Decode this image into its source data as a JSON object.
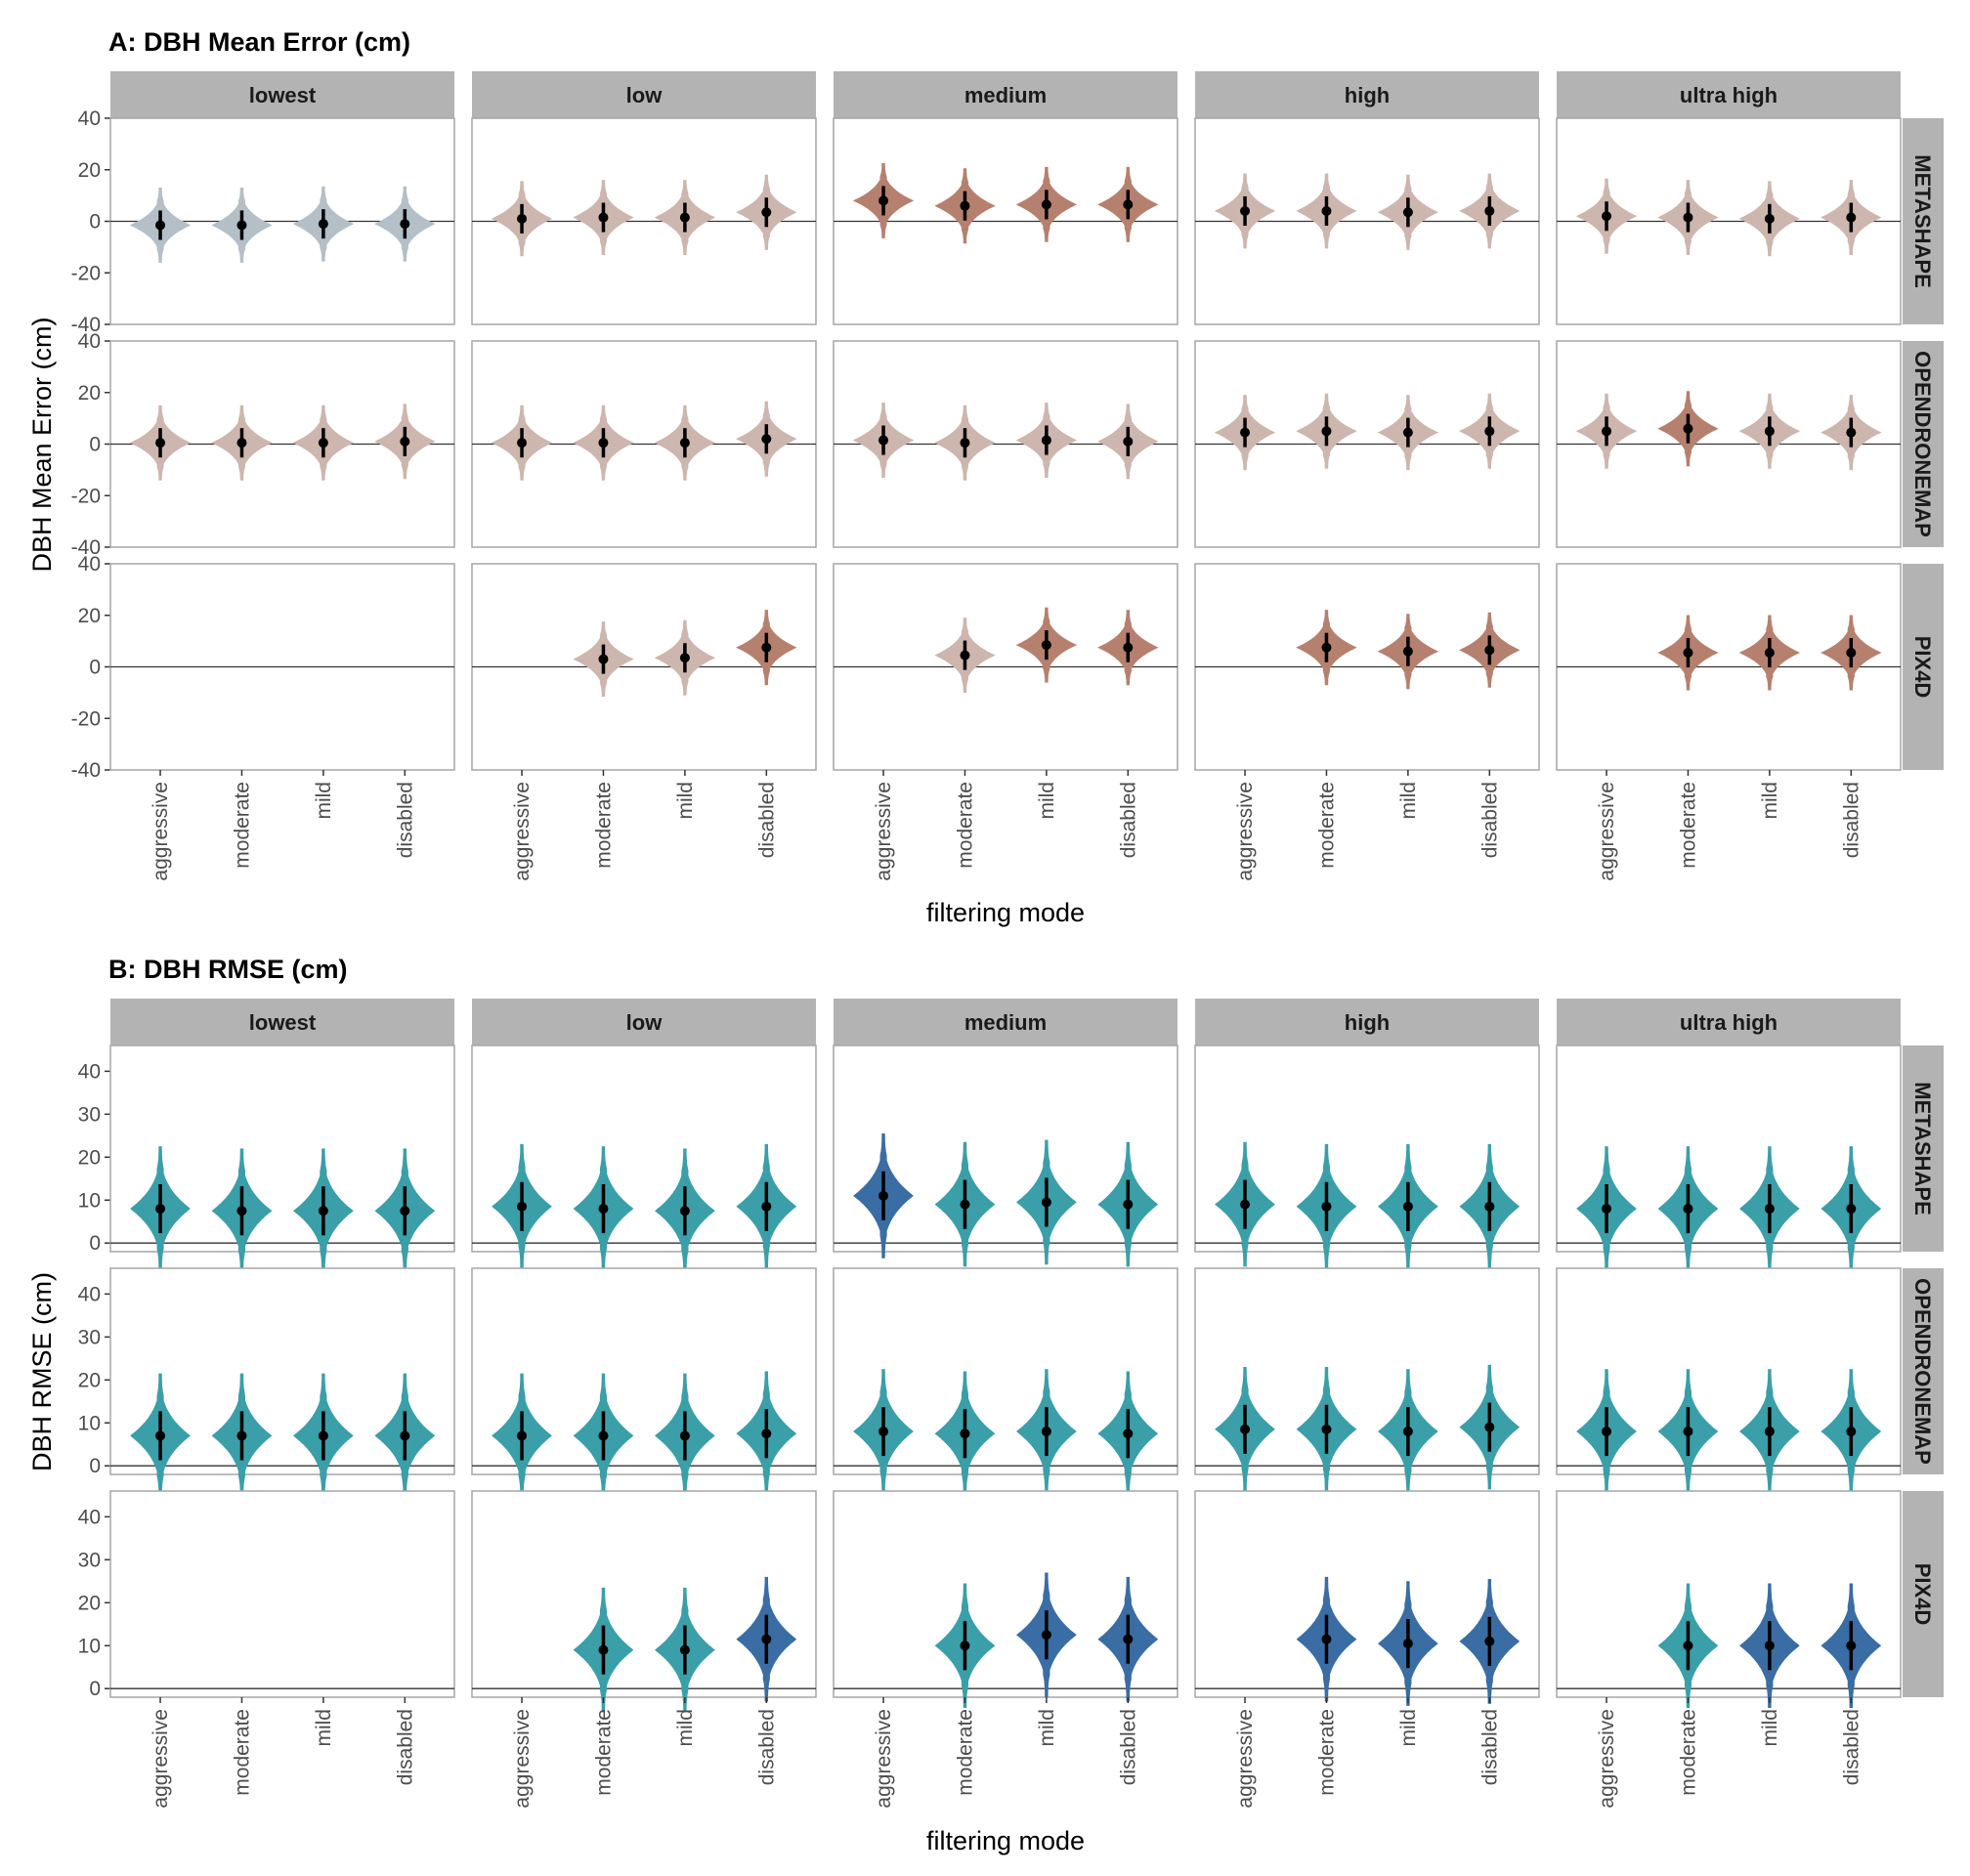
{
  "panels_order": [
    "A",
    "B"
  ],
  "chart_data": [
    {
      "id": "A",
      "type": "violin",
      "title": "A: DBH Mean Error (cm)",
      "xlabel": "filtering mode",
      "ylabel": "DBH Mean Error (cm)",
      "ylim": [
        -40,
        40
      ],
      "yticks": [
        -40,
        -20,
        0,
        20,
        40
      ],
      "col_facets": [
        "lowest",
        "low",
        "medium",
        "high",
        "ultra high"
      ],
      "row_facets": [
        "METASHAPE",
        "OPENDRONEMAP",
        "PIX4D"
      ],
      "categories": [
        "aggressive",
        "moderate",
        "mild",
        "disabled"
      ],
      "reference_line": 0,
      "grid": false,
      "cells": [
        {
          "row": "METASHAPE",
          "col": "lowest",
          "mean": [
            -1.5,
            -1.5,
            -1,
            -1
          ],
          "halfwidth": [
            6,
            6,
            6,
            6
          ],
          "color": [
            "#b4bfc7",
            "#b4bfc7",
            "#b4bfc7",
            "#b4bfc7"
          ]
        },
        {
          "row": "METASHAPE",
          "col": "low",
          "mean": [
            1,
            1.5,
            1.5,
            3.5
          ],
          "halfwidth": [
            6,
            6,
            6,
            6
          ],
          "color": [
            "#cdb6ae",
            "#cdb6ae",
            "#cdb6ae",
            "#cdb6ae"
          ]
        },
        {
          "row": "METASHAPE",
          "col": "medium",
          "mean": [
            8,
            6,
            6.5,
            6.5
          ],
          "halfwidth": [
            6,
            6,
            6,
            6
          ],
          "color": [
            "#b6806f",
            "#b6806f",
            "#b6806f",
            "#b6806f"
          ]
        },
        {
          "row": "METASHAPE",
          "col": "high",
          "mean": [
            4,
            4,
            3.5,
            4
          ],
          "halfwidth": [
            6,
            6,
            6,
            6
          ],
          "color": [
            "#cdb6ae",
            "#cdb6ae",
            "#cdb6ae",
            "#cdb6ae"
          ]
        },
        {
          "row": "METASHAPE",
          "col": "ultra high",
          "mean": [
            2,
            1.5,
            1,
            1.5
          ],
          "halfwidth": [
            6,
            6,
            6,
            6
          ],
          "color": [
            "#cdb6ae",
            "#cdb6ae",
            "#cdb6ae",
            "#cdb6ae"
          ]
        },
        {
          "row": "OPENDRONEMAP",
          "col": "lowest",
          "mean": [
            0.5,
            0.5,
            0.5,
            1
          ],
          "halfwidth": [
            6,
            6,
            6,
            6
          ],
          "color": [
            "#cdb6ae",
            "#cdb6ae",
            "#cdb6ae",
            "#cdb6ae"
          ]
        },
        {
          "row": "OPENDRONEMAP",
          "col": "low",
          "mean": [
            0.5,
            0.5,
            0.5,
            2
          ],
          "halfwidth": [
            6,
            6,
            6,
            6
          ],
          "color": [
            "#cdb6ae",
            "#cdb6ae",
            "#cdb6ae",
            "#cdb6ae"
          ]
        },
        {
          "row": "OPENDRONEMAP",
          "col": "medium",
          "mean": [
            1.5,
            0.5,
            1.5,
            1
          ],
          "halfwidth": [
            6,
            6,
            6,
            6
          ],
          "color": [
            "#cdb6ae",
            "#cdb6ae",
            "#cdb6ae",
            "#cdb6ae"
          ]
        },
        {
          "row": "OPENDRONEMAP",
          "col": "high",
          "mean": [
            4.5,
            5,
            4.5,
            5
          ],
          "halfwidth": [
            6,
            6,
            6,
            6
          ],
          "color": [
            "#cdb6ae",
            "#cdb6ae",
            "#cdb6ae",
            "#cdb6ae"
          ]
        },
        {
          "row": "OPENDRONEMAP",
          "col": "ultra high",
          "mean": [
            5,
            6,
            5,
            4.5
          ],
          "halfwidth": [
            6,
            6,
            6,
            6
          ],
          "color": [
            "#cdb6ae",
            "#b6806f",
            "#cdb6ae",
            "#cdb6ae"
          ]
        },
        {
          "row": "PIX4D",
          "col": "lowest",
          "mean": [
            null,
            null,
            null,
            null
          ],
          "halfwidth": [
            6,
            6,
            6,
            6
          ],
          "color": [
            "#cdb6ae",
            "#cdb6ae",
            "#cdb6ae",
            "#cdb6ae"
          ]
        },
        {
          "row": "PIX4D",
          "col": "low",
          "mean": [
            null,
            3,
            3.5,
            7.5
          ],
          "halfwidth": [
            6,
            6,
            6,
            6
          ],
          "color": [
            "#cdb6ae",
            "#cdb6ae",
            "#cdb6ae",
            "#b6806f"
          ]
        },
        {
          "row": "PIX4D",
          "col": "medium",
          "mean": [
            null,
            4.5,
            8.5,
            7.5
          ],
          "halfwidth": [
            6,
            6,
            6,
            6
          ],
          "color": [
            "#cdb6ae",
            "#cdb6ae",
            "#b6806f",
            "#b6806f"
          ]
        },
        {
          "row": "PIX4D",
          "col": "high",
          "mean": [
            null,
            7.5,
            6,
            6.5
          ],
          "halfwidth": [
            6,
            6,
            6,
            6
          ],
          "color": [
            "#cdb6ae",
            "#b6806f",
            "#b6806f",
            "#b6806f"
          ]
        },
        {
          "row": "PIX4D",
          "col": "ultra high",
          "mean": [
            null,
            5.5,
            5.5,
            5.5
          ],
          "halfwidth": [
            6,
            6,
            6,
            6
          ],
          "color": [
            "#cdb6ae",
            "#b6806f",
            "#b6806f",
            "#b6806f"
          ]
        }
      ]
    },
    {
      "id": "B",
      "type": "violin",
      "title": "B: DBH RMSE (cm)",
      "xlabel": "filtering mode",
      "ylabel": "DBH RMSE (cm)",
      "ylim": [
        -2,
        46
      ],
      "yticks": [
        0,
        10,
        20,
        30,
        40
      ],
      "col_facets": [
        "lowest",
        "low",
        "medium",
        "high",
        "ultra high"
      ],
      "row_facets": [
        "METASHAPE",
        "OPENDRONEMAP",
        "PIX4D"
      ],
      "categories": [
        "aggressive",
        "moderate",
        "mild",
        "disabled"
      ],
      "reference_line": 0,
      "grid": false,
      "cells": [
        {
          "row": "METASHAPE",
          "col": "lowest",
          "mean": [
            8,
            7.5,
            7.5,
            7.5
          ],
          "halfwidth": [
            6,
            6,
            6,
            6
          ],
          "color": [
            "#3a9fa8",
            "#3a9fa8",
            "#3a9fa8",
            "#3a9fa8"
          ]
        },
        {
          "row": "METASHAPE",
          "col": "low",
          "mean": [
            8.5,
            8,
            7.5,
            8.5
          ],
          "halfwidth": [
            6,
            6,
            6,
            6
          ],
          "color": [
            "#3a9fa8",
            "#3a9fa8",
            "#3a9fa8",
            "#3a9fa8"
          ]
        },
        {
          "row": "METASHAPE",
          "col": "medium",
          "mean": [
            11,
            9,
            9.5,
            9
          ],
          "halfwidth": [
            6,
            6,
            6,
            6
          ],
          "color": [
            "#3a6da3",
            "#3a9fa8",
            "#3a9fa8",
            "#3a9fa8"
          ]
        },
        {
          "row": "METASHAPE",
          "col": "high",
          "mean": [
            9,
            8.5,
            8.5,
            8.5
          ],
          "halfwidth": [
            6,
            6,
            6,
            6
          ],
          "color": [
            "#3a9fa8",
            "#3a9fa8",
            "#3a9fa8",
            "#3a9fa8"
          ]
        },
        {
          "row": "METASHAPE",
          "col": "ultra high",
          "mean": [
            8,
            8,
            8,
            8
          ],
          "halfwidth": [
            6,
            6,
            6,
            6
          ],
          "color": [
            "#3a9fa8",
            "#3a9fa8",
            "#3a9fa8",
            "#3a9fa8"
          ]
        },
        {
          "row": "OPENDRONEMAP",
          "col": "lowest",
          "mean": [
            7,
            7,
            7,
            7
          ],
          "halfwidth": [
            6,
            6,
            6,
            6
          ],
          "color": [
            "#3a9fa8",
            "#3a9fa8",
            "#3a9fa8",
            "#3a9fa8"
          ]
        },
        {
          "row": "OPENDRONEMAP",
          "col": "low",
          "mean": [
            7,
            7,
            7,
            7.5
          ],
          "halfwidth": [
            6,
            6,
            6,
            6
          ],
          "color": [
            "#3a9fa8",
            "#3a9fa8",
            "#3a9fa8",
            "#3a9fa8"
          ]
        },
        {
          "row": "OPENDRONEMAP",
          "col": "medium",
          "mean": [
            8,
            7.5,
            8,
            7.5
          ],
          "halfwidth": [
            6,
            6,
            6,
            6
          ],
          "color": [
            "#3a9fa8",
            "#3a9fa8",
            "#3a9fa8",
            "#3a9fa8"
          ]
        },
        {
          "row": "OPENDRONEMAP",
          "col": "high",
          "mean": [
            8.5,
            8.5,
            8,
            9
          ],
          "halfwidth": [
            6,
            6,
            6,
            6
          ],
          "color": [
            "#3a9fa8",
            "#3a9fa8",
            "#3a9fa8",
            "#3a9fa8"
          ]
        },
        {
          "row": "OPENDRONEMAP",
          "col": "ultra high",
          "mean": [
            8,
            8,
            8,
            8
          ],
          "halfwidth": [
            6,
            6,
            6,
            6
          ],
          "color": [
            "#3a9fa8",
            "#3a9fa8",
            "#3a9fa8",
            "#3a9fa8"
          ]
        },
        {
          "row": "PIX4D",
          "col": "lowest",
          "mean": [
            null,
            null,
            null,
            null
          ],
          "halfwidth": [
            6,
            6,
            6,
            6
          ],
          "color": [
            "#3a9fa8",
            "#3a9fa8",
            "#3a9fa8",
            "#3a9fa8"
          ]
        },
        {
          "row": "PIX4D",
          "col": "low",
          "mean": [
            null,
            9,
            9,
            11.5
          ],
          "halfwidth": [
            6,
            6,
            6,
            6
          ],
          "color": [
            "#3a9fa8",
            "#3a9fa8",
            "#3a9fa8",
            "#3a6da3"
          ]
        },
        {
          "row": "PIX4D",
          "col": "medium",
          "mean": [
            null,
            10,
            12.5,
            11.5
          ],
          "halfwidth": [
            6,
            6,
            6,
            6
          ],
          "color": [
            "#3a9fa8",
            "#3a9fa8",
            "#3a6da3",
            "#3a6da3"
          ]
        },
        {
          "row": "PIX4D",
          "col": "high",
          "mean": [
            null,
            11.5,
            10.5,
            11
          ],
          "halfwidth": [
            6,
            6,
            6,
            6
          ],
          "color": [
            "#3a9fa8",
            "#3a6da3",
            "#3a6da3",
            "#3a6da3"
          ]
        },
        {
          "row": "PIX4D",
          "col": "ultra high",
          "mean": [
            null,
            10,
            10,
            10
          ],
          "halfwidth": [
            6,
            6,
            6,
            6
          ],
          "color": [
            "#3a9fa8",
            "#3a9fa8",
            "#3a6da3",
            "#3a6da3"
          ]
        }
      ]
    }
  ]
}
